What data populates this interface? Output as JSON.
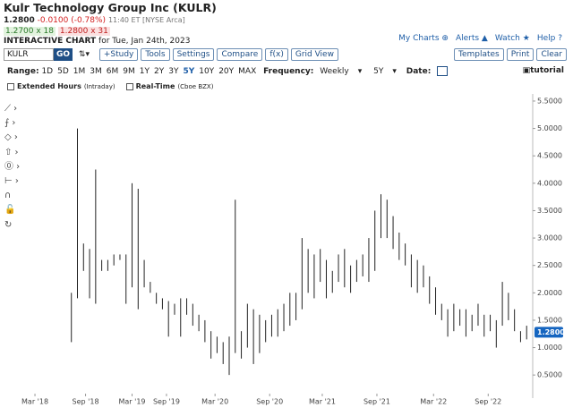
{
  "header": {
    "title": "Kulr Technology Group Inc (KULR)",
    "price": "1.2800",
    "change": "-0.0100 (-0.78%)",
    "time": "11:40 ET [NYSE Arca]",
    "bid": "1.2700 x 18",
    "ask": "1.2800 x 31",
    "chart_label": "INTERACTIVE CHART",
    "chart_date": "for Tue, Jan 24th, 2023",
    "links": [
      "My Charts",
      "Alerts",
      "Watch",
      "Help"
    ]
  },
  "toolbar": {
    "symbol": "KULR",
    "go": "GO",
    "buttons": [
      "+Study",
      "Tools",
      "Settings",
      "Compare",
      "f(x)",
      "Grid View"
    ],
    "right_buttons": [
      "Templates",
      "Print",
      "Clear"
    ],
    "range_label": "Range:",
    "ranges": [
      "1D",
      "5D",
      "1M",
      "3M",
      "6M",
      "9M",
      "1Y",
      "2Y",
      "3Y",
      "5Y",
      "10Y",
      "20Y",
      "MAX"
    ],
    "selected_range": "5Y",
    "frequency_label": "Frequency:",
    "frequency": "Weekly",
    "period": "5Y",
    "date_label": "Date:",
    "tutorial": "tutorial"
  },
  "options": [
    {
      "label": "Extended Hours",
      "note": "(Intraday)"
    },
    {
      "label": "Real-Time",
      "note": "(Cboe BZX)"
    }
  ],
  "chart_data": {
    "type": "ohlc",
    "color": "#222222",
    "x": [
      22,
      25,
      28,
      31,
      34,
      37,
      40,
      43,
      46,
      49,
      52,
      55,
      58,
      61,
      64,
      67,
      70,
      73,
      76,
      79,
      82,
      85,
      88,
      91,
      94,
      97,
      100,
      103,
      106,
      109,
      112,
      115,
      118,
      121,
      124,
      127,
      130,
      133,
      136,
      139,
      142,
      145,
      148,
      151,
      154,
      157,
      160,
      163,
      166,
      169,
      172,
      175,
      178,
      181,
      184,
      187,
      190,
      193,
      196,
      199,
      202,
      205,
      208,
      211,
      214,
      217,
      220,
      223,
      226,
      229,
      232,
      235,
      238,
      241,
      244,
      247
    ],
    "high": [
      2.0,
      5.0,
      2.9,
      2.8,
      4.25,
      2.6,
      2.6,
      2.7,
      2.7,
      2.7,
      4.0,
      3.9,
      2.6,
      2.2,
      2.0,
      1.9,
      1.85,
      1.8,
      1.9,
      1.9,
      1.8,
      1.6,
      1.5,
      1.3,
      1.2,
      1.1,
      1.2,
      3.7,
      1.3,
      1.8,
      1.7,
      1.6,
      1.5,
      1.6,
      1.7,
      1.8,
      2.0,
      2.0,
      3.0,
      2.8,
      2.7,
      2.8,
      2.6,
      2.4,
      2.7,
      2.8,
      2.5,
      2.6,
      2.7,
      3.0,
      3.5,
      3.8,
      3.7,
      3.4,
      3.1,
      2.9,
      2.7,
      2.6,
      2.5,
      2.3,
      2.1,
      1.8,
      1.7,
      1.8,
      1.7,
      1.7,
      1.6,
      1.8,
      1.6,
      1.6,
      1.5,
      2.2,
      2.0,
      1.7,
      1.3,
      1.4
    ],
    "low": [
      1.1,
      1.9,
      2.4,
      1.9,
      1.8,
      2.4,
      2.4,
      2.5,
      2.6,
      1.8,
      2.1,
      1.7,
      2.1,
      2.0,
      1.8,
      1.7,
      1.2,
      1.6,
      1.2,
      1.6,
      1.4,
      1.3,
      1.1,
      0.8,
      0.9,
      0.7,
      0.5,
      0.9,
      0.8,
      1.0,
      0.7,
      0.9,
      1.1,
      1.2,
      1.2,
      1.3,
      1.4,
      1.5,
      1.7,
      2.0,
      1.9,
      2.2,
      1.9,
      2.0,
      2.2,
      2.1,
      2.0,
      2.2,
      2.3,
      2.2,
      2.4,
      3.0,
      3.0,
      2.8,
      2.6,
      2.5,
      2.1,
      2.0,
      2.1,
      1.8,
      1.6,
      1.5,
      1.2,
      1.3,
      1.4,
      1.2,
      1.3,
      1.4,
      1.2,
      1.3,
      1.0,
      1.4,
      1.5,
      1.3,
      1.1,
      1.15
    ],
    "xlim": [
      0,
      250
    ],
    "xticks": [
      {
        "value": 4,
        "label": "Mar '18"
      },
      {
        "value": 29,
        "label": "Sep '18"
      },
      {
        "value": 52,
        "label": "Mar '19"
      },
      {
        "value": 69,
        "label": "Sep '19"
      },
      {
        "value": 93,
        "label": "Mar '20"
      },
      {
        "value": 120,
        "label": "Sep '20"
      },
      {
        "value": 146,
        "label": "Mar '21"
      },
      {
        "value": 173,
        "label": "Sep '21"
      },
      {
        "value": 201,
        "label": "Mar '22"
      },
      {
        "value": 228,
        "label": "Sep '22"
      }
    ],
    "ylim": [
      0.16,
      5.63
    ],
    "yticks": [
      {
        "value": 0.5,
        "label": "0.5000"
      },
      {
        "value": 1,
        "label": "1.0000"
      },
      {
        "value": 1.5,
        "label": "1.5000"
      },
      {
        "value": 2,
        "label": "2.0000"
      },
      {
        "value": 2.5,
        "label": "2.5000"
      },
      {
        "value": 3,
        "label": "3.0000"
      },
      {
        "value": 3.5,
        "label": "3.5000"
      },
      {
        "value": 4,
        "label": "4.0000"
      },
      {
        "value": 4.5,
        "label": "4.5000"
      },
      {
        "value": 5,
        "label": "5.0000"
      },
      {
        "value": 5.5,
        "label": "5.5000"
      }
    ],
    "last_price": {
      "value": 1.28,
      "label": "1.2800"
    },
    "last_price_color": "#1565c0"
  }
}
